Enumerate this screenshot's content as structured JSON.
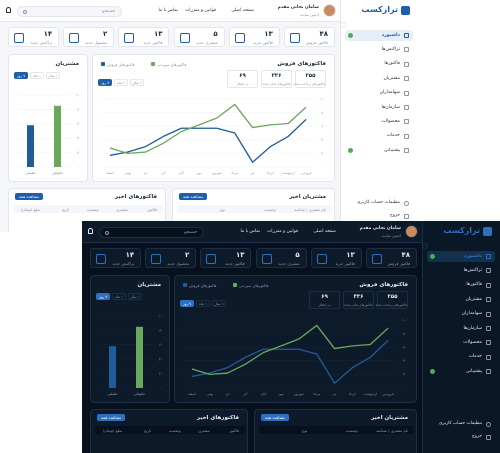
{
  "brand": "ترازکسب",
  "sidebar": {
    "items": [
      {
        "label": "داشبورد",
        "active": true,
        "badge": true
      },
      {
        "label": "تراکنش‌ها"
      },
      {
        "label": "فاکتورها"
      },
      {
        "label": "مشتریان"
      },
      {
        "label": "سهامداران"
      },
      {
        "label": "سازمان‌ها"
      },
      {
        "label": "محصولات"
      },
      {
        "label": "خدمات"
      },
      {
        "label": "پشتیبانی",
        "badge": true
      }
    ],
    "settings": "تنظیمات حساب کاربری",
    "logout": "خروج"
  },
  "header": {
    "search": "جستجو",
    "nav": [
      "صفحه اصلی",
      "قوانین و مقررات",
      "تماس با ما"
    ],
    "user": {
      "name": "سامان نجاتی مقدم",
      "role": "ادمین سایت"
    }
  },
  "stats": [
    {
      "value": "۴۸",
      "label": "فاکتور فروش"
    },
    {
      "value": "۱۳",
      "label": "فاکتور خرید"
    },
    {
      "value": "۵",
      "label": "مشتری جدید"
    },
    {
      "value": "۱۳",
      "label": "فاکتور جدید"
    },
    {
      "value": "۲",
      "label": "محصول جدید"
    },
    {
      "value": "۱۴",
      "label": "تراکنش جدید"
    }
  ],
  "chart_data": [
    {
      "type": "line",
      "title": "فاکتورهای فروش",
      "stats": [
        {
          "value": "۲۵۵",
          "label": "فاکتورهای پرداخت شده"
        },
        {
          "value": "۳۳۶",
          "label": "فاکتورهای صادر شده"
        },
        {
          "value": "۶۹",
          "label": "در انتظار"
        }
      ],
      "filters": [
        {
          "label": "۷ روز",
          "active": true
        },
        {
          "label": "۱ ماه"
        },
        {
          "label": "۱ سال"
        }
      ],
      "categories": [
        "اسفند",
        "بهمن",
        "دی",
        "آذر",
        "آبان",
        "مهر",
        "شهریور",
        "مرداد",
        "تیر",
        "خرداد",
        "اردیبهشت",
        "فروردین"
      ],
      "series": [
        {
          "name": "فاکتورهای فروش",
          "color": "#1f5c99",
          "values": [
            17,
            22,
            30,
            45,
            57,
            57,
            57,
            50,
            7,
            30,
            45,
            70
          ]
        },
        {
          "name": "فاکتورهای سپردنی",
          "color": "#6aa85a",
          "values": [
            28,
            20,
            22,
            35,
            52,
            62,
            72,
            92,
            58,
            62,
            64,
            88
          ]
        }
      ],
      "ylim": [
        0,
        100
      ],
      "yticks": [
        {
          "value": 0,
          "label": "۰"
        },
        {
          "value": 20,
          "label": "۲۰"
        },
        {
          "value": 40,
          "label": "۴۰"
        },
        {
          "value": 60,
          "label": "۶۰"
        },
        {
          "value": 80,
          "label": "۸۰"
        },
        {
          "value": 100,
          "label": "۱۰۰"
        }
      ],
      "grid": true
    },
    {
      "type": "bar",
      "title": "مشتریان",
      "filters": [
        {
          "label": "۷ روز",
          "active": true
        },
        {
          "label": "۱ ماه"
        },
        {
          "label": "۱ سال"
        }
      ],
      "categories": [
        "حقیقی",
        "حقوقی"
      ],
      "values": [
        58,
        85
      ],
      "colors": [
        "#1f5c99",
        "#6aa85a"
      ],
      "ylim": [
        0,
        100
      ],
      "yticks": [
        {
          "value": 0,
          "label": "۰"
        },
        {
          "value": 20,
          "label": "۲۰"
        },
        {
          "value": 40,
          "label": "۴۰"
        },
        {
          "value": 60,
          "label": "۶۰"
        },
        {
          "value": 80,
          "label": "۸۰"
        },
        {
          "value": 100,
          "label": "۱۰۰"
        }
      ],
      "grid": true
    }
  ],
  "tables": [
    {
      "title": "مشتریان اخیر",
      "action": "مشاهده همه",
      "columns": [
        "نام مشتری / شناسه",
        "وضعیت",
        "نوع"
      ]
    },
    {
      "title": "فاکتورهای اخیر",
      "action": "مشاهده همه",
      "columns": [
        "فاکتور",
        "مشتری",
        "وضعیت",
        "تاریخ",
        "مبلغ (تومان)"
      ]
    }
  ]
}
